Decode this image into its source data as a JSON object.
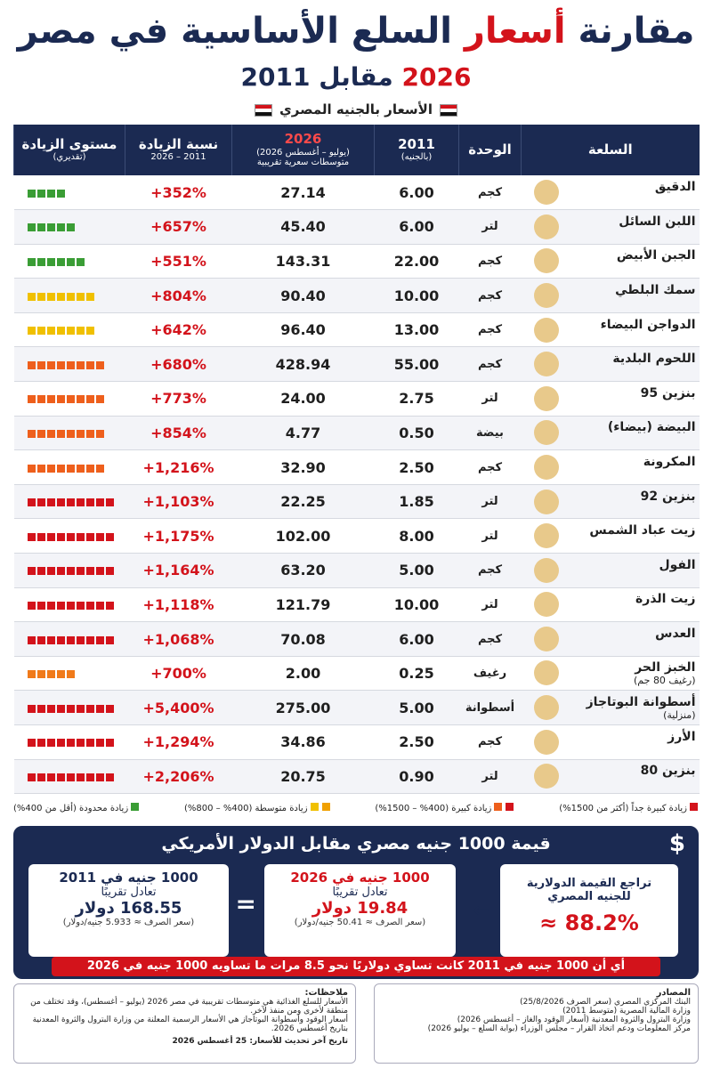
{
  "header": {
    "title": [
      "مقارنة",
      "أسعار",
      "السلع الأساسية في مصر"
    ],
    "subtitle": [
      "2026",
      "مقابل 2011"
    ],
    "currency_note": "الأسعار بالجنيه المصري"
  },
  "table": {
    "columns": [
      {
        "title": "السلعة"
      },
      {
        "title": "الوحدة"
      },
      {
        "title": "2011",
        "sub": "(بالجنيه)"
      },
      {
        "title": "2026",
        "sub": "(يوليو – أغسطس 2026)",
        "sub2": "متوسطات سعرية تقريبية"
      },
      {
        "title": "نسبة الزيادة",
        "sub": "2011 – 2026"
      },
      {
        "title": "مستوى الزيادة",
        "sub": "(تقديري)"
      }
    ],
    "rows": [
      {
        "name": "الدقيق",
        "unit": "كجم",
        "p2011": "6.00",
        "p2026": "27.14",
        "increase": "+352%",
        "level": {
          "squares": 4,
          "color": "#3a9d35"
        }
      },
      {
        "name": "اللبن السائل",
        "unit": "لتر",
        "p2011": "6.00",
        "p2026": "45.40",
        "increase": "+657%",
        "level": {
          "squares": 5,
          "color": "#3a9d35"
        }
      },
      {
        "name": "الجبن الأبيض",
        "unit": "كجم",
        "p2011": "22.00",
        "p2026": "143.31",
        "increase": "+551%",
        "level": {
          "squares": 6,
          "color": "#3a9d35"
        }
      },
      {
        "name": "سمك البلطي",
        "unit": "كجم",
        "p2011": "10.00",
        "p2026": "90.40",
        "increase": "+804%",
        "level": {
          "squares": 7,
          "color": "#f0c000"
        }
      },
      {
        "name": "الدواجن البيضاء",
        "unit": "كجم",
        "p2011": "13.00",
        "p2026": "96.40",
        "increase": "+642%",
        "level": {
          "squares": 7,
          "color": "#f0c000"
        }
      },
      {
        "name": "اللحوم البلدية",
        "unit": "كجم",
        "p2011": "55.00",
        "p2026": "428.94",
        "increase": "+680%",
        "level": {
          "squares": 8,
          "color": "#ee5f1c"
        }
      },
      {
        "name": "بنزين 95",
        "unit": "لتر",
        "p2011": "2.75",
        "p2026": "24.00",
        "increase": "+773%",
        "level": {
          "squares": 8,
          "color": "#ee5f1c"
        }
      },
      {
        "name": "البيضة (بيضاء)",
        "unit": "بيضة",
        "p2011": "0.50",
        "p2026": "4.77",
        "increase": "+854%",
        "level": {
          "squares": 8,
          "color": "#ee5f1c"
        }
      },
      {
        "name": "المكرونة",
        "unit": "كجم",
        "p2011": "2.50",
        "p2026": "32.90",
        "increase": "+1,216%",
        "level": {
          "squares": 8,
          "color": "#ee5f1c"
        }
      },
      {
        "name": "بنزين 92",
        "unit": "لتر",
        "p2011": "1.85",
        "p2026": "22.25",
        "increase": "+1,103%",
        "level": {
          "squares": 9,
          "color": "#d3131b"
        }
      },
      {
        "name": "زيت عباد الشمس",
        "unit": "لتر",
        "p2011": "8.00",
        "p2026": "102.00",
        "increase": "+1,175%",
        "level": {
          "squares": 9,
          "color": "#d3131b"
        }
      },
      {
        "name": "الفول",
        "unit": "كجم",
        "p2011": "5.00",
        "p2026": "63.20",
        "increase": "+1,164%",
        "level": {
          "squares": 9,
          "color": "#d3131b"
        }
      },
      {
        "name": "زيت الذرة",
        "unit": "لتر",
        "p2011": "10.00",
        "p2026": "121.79",
        "increase": "+1,118%",
        "level": {
          "squares": 9,
          "color": "#d3131b"
        }
      },
      {
        "name": "العدس",
        "unit": "كجم",
        "p2011": "6.00",
        "p2026": "70.08",
        "increase": "+1,068%",
        "level": {
          "squares": 9,
          "color": "#d3131b"
        }
      },
      {
        "name": "الخبز الحر",
        "note": "(رغيف 80 جم)",
        "unit": "رغيف",
        "p2011": "0.25",
        "p2026": "2.00",
        "increase": "+700%",
        "level": {
          "squares": 5,
          "color": "#f07a1a"
        }
      },
      {
        "name": "أسطوانة البوتاجاز",
        "note": "(منزلية)",
        "unit": "أسطوانة",
        "p2011": "5.00",
        "p2026": "275.00",
        "increase": "+5,400%",
        "level": {
          "squares": 9,
          "color": "#d3131b"
        }
      },
      {
        "name": "الأرز",
        "unit": "كجم",
        "p2011": "2.50",
        "p2026": "34.86",
        "increase": "+1,294%",
        "level": {
          "squares": 9,
          "color": "#d3131b"
        }
      },
      {
        "name": "بنزين 80",
        "unit": "لتر",
        "p2011": "0.90",
        "p2026": "20.75",
        "increase": "+2,206%",
        "level": {
          "squares": 9,
          "color": "#d3131b"
        }
      }
    ]
  },
  "legend": [
    {
      "label": "زيادة كبيرة جداً (أكثر من 1500%)",
      "colors": [
        "#d3131b"
      ]
    },
    {
      "label": "زيادة كبيرة (400% – 1500%)",
      "colors": [
        "#d3131b",
        "#ee5f1c"
      ]
    },
    {
      "label": "زيادة متوسطة (400% – 800%)",
      "colors": [
        "#f0a000",
        "#f0c000"
      ]
    },
    {
      "label": "زيادة محدودة (أقل من 400%)",
      "colors": [
        "#3a9d35"
      ]
    }
  ],
  "dollar": {
    "title": "قيمة 1000 جنيه مصري مقابل الدولار الأمريكي",
    "card_2011": {
      "title": "1000 جنيه في 2011",
      "line": "تعادل تقريبًا",
      "amount": "168.55 دولار",
      "rate": "(سعر الصرف ≈ 5.933 جنيه/دولار)"
    },
    "card_2026": {
      "title": "1000 جنيه في 2026",
      "line": "تعادل تقريبًا",
      "amount": "19.84 دولار",
      "rate": "(سعر الصرف ≈ 50.41 جنيه/دولار)"
    },
    "decline": {
      "line1": "تراجع القيمة الدولارية",
      "line2": "للجنيه المصري",
      "value": "≈ 88.2%"
    },
    "banner": "أي أن 1000 جنيه في 2011 كانت تساوي دولاريًا نحو 8.5 مرات ما تساويه 1000 جنيه في 2026"
  },
  "notes": {
    "title": "ملاحظات:",
    "items": [
      "الأسعار للسلع الغذائية هي متوسطات تقريبية في مصر 2026 (يوليو – أغسطس)، وقد تختلف من منطقة لأخرى ومن منفذ لآخر.",
      "أسعار الوقود وأسطوانة البوتاجاز هي الأسعار الرسمية المعلنة من وزارة البترول والثروة المعدنية بتاريخ أغسطس 2026."
    ],
    "updated": "تاريخ آخر تحديث للأسعار: 25 أغسطس 2026"
  },
  "sources": {
    "title": "المصادر",
    "items": [
      "البنك المركزي المصري (سعر الصرف 25/8/2026)",
      "وزارة المالية المصرية (متوسط 2011)",
      "وزارة البترول والثروة المعدنية (أسعار الوقود والغاز – أغسطس 2026)",
      "مركز المعلومات ودعم اتخاذ القرار – مجلس الوزراء (بوابة السلع – يوليو 2026)"
    ]
  }
}
